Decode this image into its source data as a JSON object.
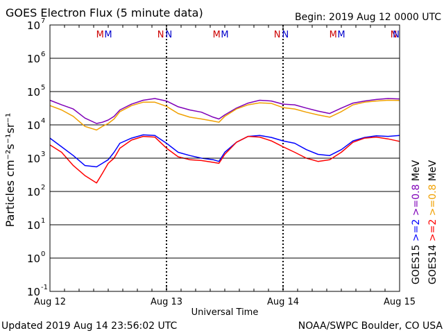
{
  "title": "GOES Electron Flux (5 minute data)",
  "begin_label": "Begin: 2019 Aug 12 0000 UTC",
  "updated_label": "Updated 2019 Aug 14 23:56:02 UTC",
  "credit_label": "NOAA/SWPC Boulder, CO USA",
  "colors": {
    "goes15_high": "#0000ff",
    "goes15_low": "#7f00b8",
    "goes14_high": "#ff0000",
    "goes14_low": "#f0a000",
    "marker_m": "#cc0000",
    "marker_n": "#0000cc",
    "axis": "#000000"
  },
  "chart_data": {
    "type": "line",
    "title": "GOES Electron Flux (5 minute data)",
    "xlabel": "Universal Time",
    "ylabel": "Particles cm⁻²s⁻¹sr⁻¹",
    "xlim_days": [
      0,
      3
    ],
    "x_tick_labels": [
      "Aug 12",
      "Aug 13",
      "Aug 14",
      "Aug 15"
    ],
    "x_tick_days": [
      0,
      1,
      2,
      3
    ],
    "yscale": "log",
    "ylim": [
      0.1,
      10000000
    ],
    "y_tick_labels": [
      {
        "base": "10",
        "exp": "7"
      },
      {
        "base": "10",
        "exp": "6"
      },
      {
        "base": "10",
        "exp": "5"
      },
      {
        "base": "10",
        "exp": "4"
      },
      {
        "base": "10",
        "exp": "3"
      },
      {
        "base": "10",
        "exp": "2"
      },
      {
        "base": "10",
        "exp": "1"
      },
      {
        "base": "10",
        "exp": "0"
      },
      {
        "base": "10",
        "exp": "-1"
      }
    ],
    "y_tick_exponents": [
      7,
      6,
      5,
      4,
      3,
      2,
      1,
      0,
      -1
    ],
    "grid": "horizontal at each decade",
    "threshold_line": 1000,
    "markers": [
      {
        "label": "M",
        "day": 0.43,
        "color": "marker_m"
      },
      {
        "label": "M",
        "day": 0.5,
        "color": "marker_n"
      },
      {
        "label": "N",
        "day": 0.95,
        "color": "marker_m"
      },
      {
        "label": "N",
        "day": 1.02,
        "color": "marker_n"
      },
      {
        "label": "M",
        "day": 1.43,
        "color": "marker_m"
      },
      {
        "label": "M",
        "day": 1.5,
        "color": "marker_n"
      },
      {
        "label": "N",
        "day": 1.95,
        "color": "marker_m"
      },
      {
        "label": "N",
        "day": 2.02,
        "color": "marker_n"
      },
      {
        "label": "M",
        "day": 2.43,
        "color": "marker_m"
      },
      {
        "label": "M",
        "day": 2.5,
        "color": "marker_n"
      },
      {
        "label": "N",
        "day": 2.95,
        "color": "marker_m"
      },
      {
        "label": "N",
        "day": 3.02,
        "color": "marker_n"
      }
    ],
    "legend": {
      "placement": "right",
      "columns": [
        {
          "satellite": "GOES15",
          "high": ">=2",
          "low": ">=0.8",
          "unit": "MeV",
          "high_color": "goes15_high",
          "low_color": "goes15_low"
        },
        {
          "satellite": "GOES14",
          "high": ">=2",
          "low": ">=0.8",
          "unit": "MeV",
          "high_color": "goes14_high",
          "low_color": "goes14_low"
        }
      ]
    },
    "series": [
      {
        "color": "goes15_low",
        "x": [
          0,
          0.1,
          0.2,
          0.3,
          0.4,
          0.45,
          0.5,
          0.55,
          0.6,
          0.7,
          0.8,
          0.9,
          1.0,
          1.1,
          1.2,
          1.3,
          1.4,
          1.45,
          1.5,
          1.6,
          1.7,
          1.8,
          1.9,
          2.0,
          2.1,
          2.2,
          2.3,
          2.4,
          2.5,
          2.6,
          2.7,
          2.8,
          2.9,
          3.0
        ],
        "y": [
          55000,
          40000,
          30000,
          16000,
          11000,
          12000,
          14000,
          18000,
          28000,
          42000,
          55000,
          62000,
          52000,
          35000,
          28000,
          24000,
          17000,
          15000,
          20000,
          32000,
          45000,
          55000,
          52000,
          42000,
          40000,
          32000,
          26000,
          22000,
          32000,
          45000,
          52000,
          58000,
          62000,
          60000
        ]
      },
      {
        "color": "goes14_low",
        "x": [
          0,
          0.1,
          0.2,
          0.3,
          0.4,
          0.45,
          0.5,
          0.55,
          0.6,
          0.7,
          0.8,
          0.9,
          1.0,
          1.1,
          1.2,
          1.3,
          1.4,
          1.45,
          1.5,
          1.6,
          1.7,
          1.8,
          1.9,
          2.0,
          2.1,
          2.2,
          2.3,
          2.4,
          2.5,
          2.6,
          2.7,
          2.8,
          2.9,
          3.0
        ],
        "y": [
          38000,
          28000,
          18000,
          9000,
          7000,
          9000,
          11000,
          15000,
          25000,
          38000,
          48000,
          48000,
          36000,
          22000,
          17000,
          15000,
          13000,
          12000,
          18000,
          30000,
          40000,
          46000,
          44000,
          33000,
          30000,
          24000,
          20000,
          17000,
          25000,
          40000,
          48000,
          52000,
          55000,
          54000
        ]
      },
      {
        "color": "goes15_high",
        "x": [
          0,
          0.1,
          0.2,
          0.3,
          0.4,
          0.45,
          0.5,
          0.55,
          0.6,
          0.7,
          0.8,
          0.9,
          1.0,
          1.1,
          1.2,
          1.3,
          1.4,
          1.45,
          1.5,
          1.6,
          1.7,
          1.8,
          1.9,
          2.0,
          2.1,
          2.2,
          2.3,
          2.4,
          2.5,
          2.6,
          2.7,
          2.8,
          2.9,
          3.0
        ],
        "y": [
          4000,
          2200,
          1200,
          600,
          550,
          700,
          900,
          1500,
          2800,
          4000,
          5000,
          4800,
          2800,
          1500,
          1200,
          1000,
          900,
          800,
          1500,
          3000,
          4500,
          4800,
          4200,
          3300,
          2800,
          1800,
          1300,
          1200,
          1800,
          3300,
          4200,
          4700,
          4500,
          4800
        ]
      },
      {
        "color": "goes14_high",
        "x": [
          0,
          0.1,
          0.2,
          0.3,
          0.4,
          0.45,
          0.5,
          0.55,
          0.6,
          0.7,
          0.8,
          0.9,
          1.0,
          1.1,
          1.2,
          1.3,
          1.4,
          1.45,
          1.5,
          1.6,
          1.7,
          1.8,
          1.9,
          2.0,
          2.1,
          2.2,
          2.3,
          2.4,
          2.5,
          2.6,
          2.7,
          2.8,
          2.9,
          3.0
        ],
        "y": [
          2500,
          1500,
          600,
          300,
          180,
          350,
          700,
          1000,
          2000,
          3500,
          4500,
          4300,
          2000,
          1100,
          900,
          850,
          750,
          700,
          1300,
          3000,
          4500,
          4300,
          3300,
          2200,
          1500,
          1000,
          800,
          900,
          1500,
          3000,
          4000,
          4300,
          3800,
          3200
        ]
      }
    ]
  }
}
